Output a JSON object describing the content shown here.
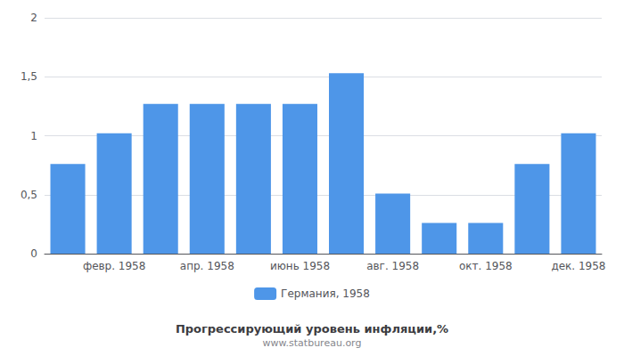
{
  "chart_data": {
    "type": "bar",
    "title": "Прогрессирующий уровень инфляции,%",
    "subtitle": "www.statbureau.org",
    "categories": [
      null,
      "февр. 1958",
      null,
      "апр. 1958",
      null,
      "июнь 1958",
      null,
      "авг. 1958",
      null,
      "окт. 1958",
      null,
      "дек. 1958"
    ],
    "series": [
      {
        "name": "Германия, 1958",
        "color": "#4e96e8",
        "values": [
          0.76,
          1.02,
          1.27,
          1.27,
          1.27,
          1.27,
          1.53,
          0.51,
          0.26,
          0.26,
          0.76,
          1.02
        ]
      }
    ],
    "ylim": [
      0,
      2.0
    ],
    "yticks": [
      0,
      {
        "value": 0.5,
        "label": "0,5"
      },
      1,
      {
        "value": 1.5,
        "label": "1,5"
      },
      2
    ],
    "grid": true,
    "legend": "bottom"
  }
}
